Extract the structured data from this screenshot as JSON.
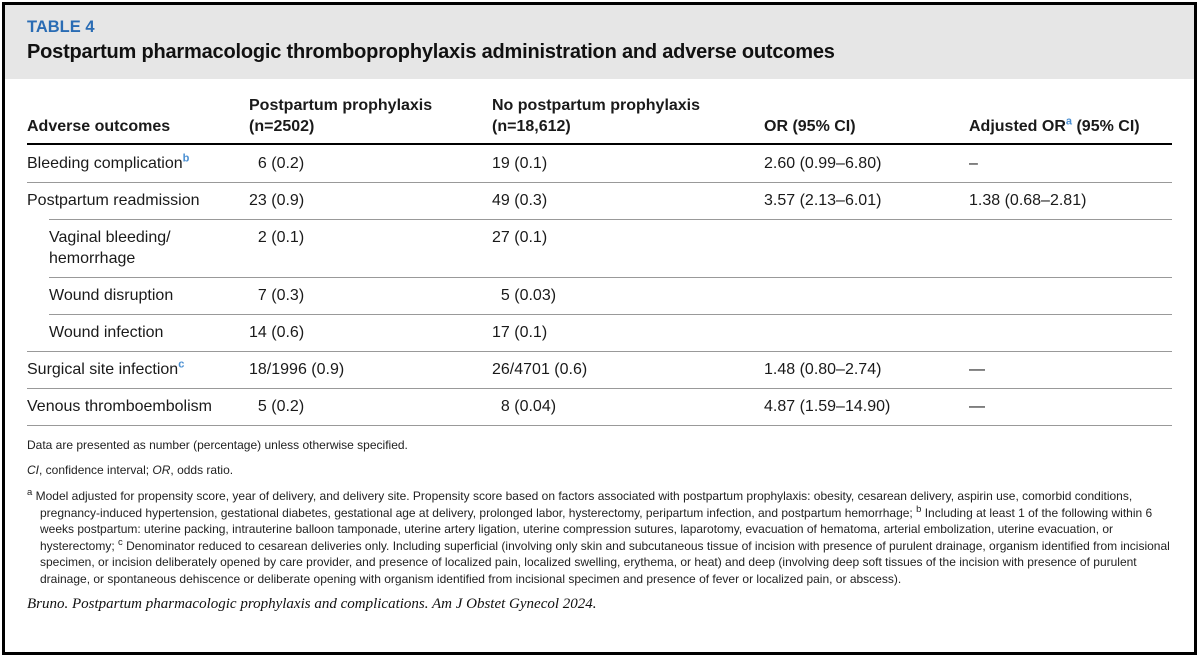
{
  "table_label": "TABLE 4",
  "title": "Postpartum pharmacologic thromboprophylaxis administration and adverse outcomes",
  "colors": {
    "accent_blue": "#2a6cb4",
    "superscript_blue": "#4a8fd2",
    "band_gray": "#e6e6e6"
  },
  "columns": {
    "c1": "Adverse outcomes",
    "c2": "Postpartum prophylaxis\n(n=2502)",
    "c3": "No postpartum prophylaxis\n(n=18,612)",
    "c4": "OR (95% CI)",
    "c5_pre": "Adjusted OR",
    "c5_sup": "a",
    "c5_post": " (95% CI)"
  },
  "rows": [
    {
      "label": "Bleeding complication",
      "sup": "b",
      "v1n": "6",
      "v1s": " (0.2)",
      "v2n": "19",
      "v2s": " (0.1)",
      "or": "2.60 (0.99–6.80)",
      "aor": "–"
    },
    {
      "label": "Postpartum readmission",
      "v1n": "23",
      "v1s": " (0.9)",
      "v2n": "49",
      "v2s": " (0.3)",
      "or": "3.57 (2.13–6.01)",
      "aor": "1.38 (0.68–2.81)"
    },
    {
      "label": "Vaginal bleeding/\nhemorrhage",
      "v1n": "2",
      "v1s": " (0.1)",
      "v2n": "27",
      "v2s": " (0.1)",
      "or": "",
      "aor": ""
    },
    {
      "label": "Wound disruption",
      "v1n": "7",
      "v1s": " (0.3)",
      "v2n": "5",
      "v2s": " (0.03)",
      "or": "",
      "aor": ""
    },
    {
      "label": "Wound infection",
      "v1n": "14",
      "v1s": " (0.6)",
      "v2n": "17",
      "v2s": " (0.1)",
      "or": "",
      "aor": ""
    },
    {
      "label": "Surgical site infection",
      "sup": "c",
      "v1n": "18",
      "v1s": "/1996 (0.9)",
      "v2n": "26",
      "v2s": "/4701 (0.6)",
      "or": "1.48 (0.80–2.74)",
      "aor": "—"
    },
    {
      "label": "Venous thromboembolism",
      "v1n": "5",
      "v1s": " (0.2)",
      "v2n": "8",
      "v2s": " (0.04)",
      "or": "4.87 (1.59–14.90)",
      "aor": "—"
    }
  ],
  "footnotes": {
    "line1": "Data are presented as number (percentage) unless otherwise specified.",
    "abbr_it1": "CI",
    "abbr_t1": ", confidence interval; ",
    "abbr_it2": "OR",
    "abbr_t2": ", odds ratio.",
    "a_marker": "a",
    "a_text": " Model adjusted for propensity score, year of delivery, and delivery site. Propensity score based on factors associated with postpartum prophylaxis: obesity, cesarean delivery, aspirin use, comorbid conditions, pregnancy-induced hypertension, gestational diabetes, gestational age at delivery, prolonged labor, hysterectomy, peripartum infection, and postpartum hemorrhage; ",
    "b_marker": "b",
    "b_text": " Including at least 1 of the following within 6 weeks postpartum: uterine packing, intrauterine balloon tamponade, uterine artery ligation, uterine compression sutures, laparotomy, evacuation of hematoma, arterial embolization, uterine evacuation, or hysterectomy; ",
    "c_marker": "c",
    "c_text": " Denominator reduced to cesarean deliveries only. Including superficial (involving only skin and subcutaneous tissue of incision with presence of purulent drainage, organism identified from incisional specimen, or incision deliberately opened by care provider, and presence of localized pain, localized swelling, erythema, or heat) and deep (involving deep soft tissues of the incision with presence of purulent drainage, or spontaneous dehiscence or deliberate opening with organism identified from incisional specimen and presence of fever or localized pain, or abscess)."
  },
  "citation": "Bruno. Postpartum pharmacologic prophylaxis and complications. Am J Obstet Gynecol 2024."
}
